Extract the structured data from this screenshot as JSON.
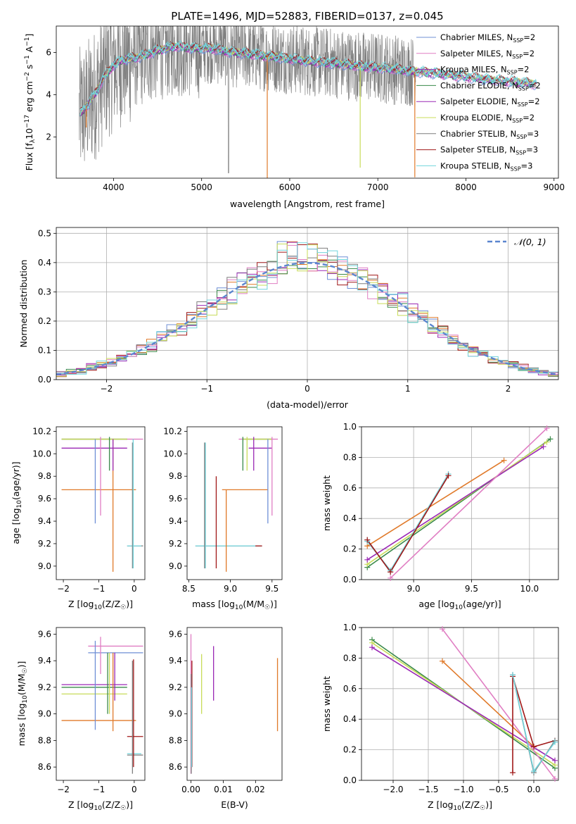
{
  "figure": {
    "title": "PLATE=1496, MJD=52883, FIBERID=0137, z=0.045"
  },
  "colors": {
    "blue": "#6f8fd6",
    "orange": "#e07a2a",
    "green": "#3a8a4a",
    "red": "#a01818",
    "purple": "#9a28b5",
    "brown": "#8b5a2b",
    "pink": "#e07ec3",
    "gray": "#7f7f7f",
    "olive": "#c8dc5a",
    "cyan": "#72d4dc",
    "dashed": "#5b86cf"
  },
  "chart_data": [
    {
      "type": "line",
      "title": "PLATE=1496, MJD=52883, FIBERID=0137, z=0.045",
      "xlabel": "wavelength [Angstrom, rest frame]",
      "ylabel": "Flux [f",
      "ylabel_full": "Flux [fλ10⁻¹⁷ erg cm⁻² s⁻¹ A⁻¹]",
      "xlim": [
        3350,
        9050
      ],
      "ylim": [
        0.05,
        7.25
      ],
      "xticks": [
        4000,
        5000,
        6000,
        7000,
        8000,
        9000
      ],
      "yticks": [
        2,
        4,
        6
      ],
      "legend_position": "top-right",
      "series": [
        {
          "name": "Chabrier MILES, NSSP=2",
          "label_main": "Chabrier MILES, N",
          "label_sub": "SSP",
          "label_end": "=2",
          "color": "blue"
        },
        {
          "name": "Salpeter MILES, NSSP=2",
          "label_main": "Salpeter MILES, N",
          "label_sub": "SSP",
          "label_end": "=2",
          "color": "pink"
        },
        {
          "name": "Kroupa MILES, NSSP=2",
          "label_main": "Kroupa MILES, N",
          "label_sub": "SSP",
          "label_end": "=2",
          "color": "purple"
        },
        {
          "name": "Chabrier ELODIE, NSSP=2",
          "label_main": "Chabrier ELODIE, N",
          "label_sub": "SSP",
          "label_end": "=2",
          "color": "green"
        },
        {
          "name": "Salpeter ELODIE, NSSP=2",
          "label_main": "Salpeter ELODIE, N",
          "label_sub": "SSP",
          "label_end": "=2",
          "color": "purple"
        },
        {
          "name": "Kroupa ELODIE, NSSP=2",
          "label_main": "Kroupa ELODIE, N",
          "label_sub": "SSP",
          "label_end": "=2",
          "color": "olive"
        },
        {
          "name": "Chabrier STELIB, NSSP=3",
          "label_main": "Chabrier STELIB, N",
          "label_sub": "SSP",
          "label_end": "=3",
          "color": "gray"
        },
        {
          "name": "Salpeter STELIB, NSSP=3",
          "label_main": "Salpeter STELIB, N",
          "label_sub": "SSP",
          "label_end": "=3",
          "color": "red"
        },
        {
          "name": "Kroupa STELIB, NSSP=3",
          "label_main": "Kroupa STELIB, N",
          "label_sub": "SSP",
          "label_end": "=3",
          "color": "cyan"
        }
      ],
      "continuum_nodes": [
        [
          3620,
          3.1
        ],
        [
          3700,
          3.5
        ],
        [
          3800,
          4.1
        ],
        [
          3900,
          4.9
        ],
        [
          4000,
          5.4
        ],
        [
          4100,
          5.65
        ],
        [
          4300,
          5.8
        ],
        [
          4500,
          6.1
        ],
        [
          4700,
          6.3
        ],
        [
          4900,
          6.2
        ],
        [
          5100,
          6.2
        ],
        [
          5300,
          6.05
        ],
        [
          5600,
          5.9
        ],
        [
          5900,
          5.75
        ],
        [
          6200,
          5.6
        ],
        [
          6500,
          5.5
        ],
        [
          6800,
          5.35
        ],
        [
          7100,
          5.25
        ],
        [
          7400,
          5.1
        ],
        [
          7700,
          5.0
        ],
        [
          8000,
          4.85
        ],
        [
          8300,
          4.7
        ],
        [
          8600,
          4.6
        ],
        [
          8800,
          4.5
        ]
      ],
      "data_range": [
        3610,
        7430
      ],
      "model_range": [
        3620,
        8800
      ],
      "dips": [
        {
          "x": 5745,
          "depth": 5.8,
          "color": "orange"
        },
        {
          "x": 6800,
          "depth": 4.8,
          "color": "olive"
        },
        {
          "x": 7420,
          "depth": 5.0,
          "color": "orange"
        },
        {
          "x": 3690,
          "depth": 1.0,
          "color": "orange"
        }
      ]
    },
    {
      "type": "area",
      "xlabel": "(data-model)/error",
      "ylabel": "Normed distribution",
      "xlim": [
        -2.5,
        2.5
      ],
      "ylim": [
        0,
        0.52
      ],
      "xticks": [
        -2,
        -1,
        0,
        1,
        2
      ],
      "yticks": [
        0.0,
        0.1,
        0.2,
        0.3,
        0.4,
        0.5
      ],
      "grid": true,
      "legend_position": "top-right",
      "reference_label": "𝒩(0, 1)",
      "bin_width": 0.1,
      "bin_start": -2.5,
      "hist_series": [
        "blue",
        "orange",
        "green",
        "red",
        "purple",
        "pink",
        "gray",
        "olive",
        "cyan"
      ]
    },
    {
      "type": "scatter",
      "xlabel": "Z [log10(Z/Z☉)]",
      "xlabel_parts": [
        "Z [log",
        "10",
        "(Z/Z",
        "☉",
        ")]"
      ],
      "ylabel": "age  [log10(age/yr)]",
      "ylabel_parts": [
        "age  [log",
        "10",
        "(age/yr)]"
      ],
      "xlim": [
        -2.2,
        0.3
      ],
      "ylim": [
        8.88,
        10.24
      ],
      "xticks": [
        -2,
        -1,
        0
      ],
      "yticks": [
        9.0,
        9.2,
        9.4,
        9.6,
        9.8,
        10.0,
        10.2
      ],
      "hlines": [
        {
          "y": 10.13,
          "x0": -2.05,
          "x1": 0.25,
          "color": "pink"
        },
        {
          "y": 10.13,
          "x0": -2.05,
          "x1": -0.2,
          "color": "green"
        },
        {
          "y": 10.13,
          "x0": -2.05,
          "x1": -0.2,
          "color": "olive"
        },
        {
          "y": 10.05,
          "x0": -2.05,
          "x1": -0.2,
          "color": "purple"
        },
        {
          "y": 9.68,
          "x0": -2.05,
          "x1": 0.05,
          "color": "orange"
        },
        {
          "y": 9.18,
          "x0": -0.2,
          "x1": 0.25,
          "color": "gray"
        },
        {
          "y": 9.18,
          "x0": -0.2,
          "x1": 0.2,
          "color": "cyan"
        }
      ],
      "vlines": [
        {
          "x": -1.1,
          "y0": 9.38,
          "y1": 10.13,
          "color": "blue"
        },
        {
          "x": -0.95,
          "y0": 9.45,
          "y1": 10.15,
          "color": "pink"
        },
        {
          "x": -0.7,
          "y0": 9.85,
          "y1": 10.15,
          "color": "green"
        },
        {
          "x": -0.6,
          "y0": 8.95,
          "y1": 10.13,
          "color": "orange"
        },
        {
          "x": -0.6,
          "y0": 9.85,
          "y1": 10.13,
          "color": "purple"
        },
        {
          "x": -0.05,
          "y0": 8.98,
          "y1": 10.1,
          "color": "gray"
        },
        {
          "x": -0.03,
          "y0": 8.98,
          "y1": 10.13,
          "color": "cyan"
        }
      ]
    },
    {
      "type": "scatter",
      "xlabel": "mass [log10(M/M☉)]",
      "xlabel_parts": [
        "mass [log",
        "10",
        "(M/M",
        "☉",
        ")]"
      ],
      "xlim": [
        8.48,
        9.62
      ],
      "ylim": [
        8.88,
        10.24
      ],
      "xticks": [
        8.5,
        9.0,
        9.5
      ],
      "yticks": [
        9.0,
        9.2,
        9.4,
        9.6,
        9.8,
        10.0,
        10.2
      ],
      "hlines": [
        {
          "y": 10.13,
          "x0": 9.1,
          "x1": 9.57,
          "color": "pink"
        },
        {
          "y": 10.13,
          "x0": 9.15,
          "x1": 9.5,
          "color": "green"
        },
        {
          "y": 10.13,
          "x0": 9.15,
          "x1": 9.5,
          "color": "olive"
        },
        {
          "y": 10.05,
          "x0": 9.22,
          "x1": 9.5,
          "color": "purple"
        },
        {
          "y": 9.68,
          "x0": 8.9,
          "x1": 9.45,
          "color": "orange"
        },
        {
          "y": 9.18,
          "x0": 8.58,
          "x1": 9.38,
          "color": "gray"
        },
        {
          "y": 9.18,
          "x0": 8.58,
          "x1": 9.32,
          "color": "cyan"
        },
        {
          "y": 9.18,
          "x0": 9.3,
          "x1": 9.38,
          "color": "red"
        }
      ],
      "vlines": [
        {
          "x": 8.7,
          "y0": 8.98,
          "y1": 10.1,
          "color": "cyan"
        },
        {
          "x": 8.69,
          "y0": 8.98,
          "y1": 10.1,
          "color": "gray"
        },
        {
          "x": 8.83,
          "y0": 8.98,
          "y1": 9.8,
          "color": "red"
        },
        {
          "x": 8.95,
          "y0": 8.95,
          "y1": 9.68,
          "color": "orange"
        },
        {
          "x": 9.15,
          "y0": 9.85,
          "y1": 10.15,
          "color": "green"
        },
        {
          "x": 9.2,
          "y0": 9.85,
          "y1": 10.15,
          "color": "olive"
        },
        {
          "x": 9.28,
          "y0": 9.85,
          "y1": 10.15,
          "color": "purple"
        },
        {
          "x": 9.45,
          "y0": 9.38,
          "y1": 10.13,
          "color": "blue"
        },
        {
          "x": 9.5,
          "y0": 9.45,
          "y1": 10.15,
          "color": "pink"
        }
      ]
    },
    {
      "type": "line",
      "xlabel": "age  [log10(age/yr)]",
      "xlabel_parts": [
        "age  [log",
        "10",
        "(age/yr)]"
      ],
      "ylabel": "mass weight",
      "xlim": [
        8.55,
        10.25
      ],
      "ylim": [
        0,
        1
      ],
      "xticks": [
        9.0,
        9.5,
        10.0
      ],
      "yticks": [
        0.0,
        0.2,
        0.4,
        0.6,
        0.8,
        1.0
      ],
      "grid": true,
      "series": [
        {
          "color": "orange",
          "points": [
            [
              8.6,
              0.22
            ],
            [
              9.78,
              0.78
            ]
          ]
        },
        {
          "color": "green",
          "points": [
            [
              8.6,
              0.08
            ],
            [
              10.18,
              0.92
            ]
          ]
        },
        {
          "color": "olive",
          "points": [
            [
              8.6,
              0.1
            ],
            [
              10.15,
              0.9
            ]
          ]
        },
        {
          "color": "purple",
          "points": [
            [
              8.6,
              0.13
            ],
            [
              10.12,
              0.87
            ]
          ]
        },
        {
          "color": "pink",
          "points": [
            [
              8.8,
              0.01
            ],
            [
              10.15,
              0.99
            ]
          ]
        },
        {
          "color": "gray",
          "points": [
            [
              8.6,
              0.26
            ],
            [
              8.8,
              0.05
            ],
            [
              9.3,
              0.69
            ]
          ]
        },
        {
          "color": "cyan",
          "points": [
            [
              8.6,
              0.25
            ],
            [
              8.8,
              0.06
            ],
            [
              9.3,
              0.69
            ]
          ]
        },
        {
          "color": "red",
          "points": [
            [
              8.6,
              0.26
            ],
            [
              8.8,
              0.05
            ],
            [
              9.3,
              0.68
            ]
          ]
        }
      ]
    },
    {
      "type": "scatter",
      "xlabel": "Z [log10(Z/Z☉)]",
      "xlabel_parts": [
        "Z [log",
        "10",
        "(Z/Z",
        "☉",
        ")]"
      ],
      "ylabel": "mass [log10(M/M☉)]",
      "ylabel_parts": [
        "mass [log",
        "10",
        "(M/M",
        "☉",
        ")]"
      ],
      "xlim": [
        -2.2,
        0.3
      ],
      "ylim": [
        8.5,
        9.65
      ],
      "xticks": [
        -2,
        -1,
        0
      ],
      "yticks": [
        8.6,
        8.8,
        9.0,
        9.2,
        9.4,
        9.6
      ],
      "hlines": [
        {
          "y": 9.51,
          "x0": -1.3,
          "x1": 0.25,
          "color": "pink"
        },
        {
          "y": 9.46,
          "x0": -1.3,
          "x1": 0.25,
          "color": "blue"
        },
        {
          "y": 9.22,
          "x0": -2.05,
          "x1": -0.2,
          "color": "purple"
        },
        {
          "y": 9.2,
          "x0": -2.05,
          "x1": -0.2,
          "color": "green"
        },
        {
          "y": 9.15,
          "x0": -2.05,
          "x1": -0.2,
          "color": "olive"
        },
        {
          "y": 8.95,
          "x0": -2.05,
          "x1": 0.05,
          "color": "orange"
        },
        {
          "y": 8.83,
          "x0": -0.2,
          "x1": 0.25,
          "color": "red"
        },
        {
          "y": 8.7,
          "x0": -0.2,
          "x1": 0.2,
          "color": "cyan"
        },
        {
          "y": 8.69,
          "x0": -0.2,
          "x1": 0.25,
          "color": "gray"
        }
      ],
      "vlines": [
        {
          "x": -1.1,
          "y0": 8.88,
          "y1": 9.55,
          "color": "blue"
        },
        {
          "x": -0.95,
          "y0": 9.3,
          "y1": 9.58,
          "color": "pink"
        },
        {
          "x": -0.75,
          "y0": 9.0,
          "y1": 9.46,
          "color": "green"
        },
        {
          "x": -0.7,
          "y0": 9.0,
          "y1": 9.46,
          "color": "olive"
        },
        {
          "x": -0.6,
          "y0": 8.87,
          "y1": 9.46,
          "color": "orange"
        },
        {
          "x": -0.55,
          "y0": 9.1,
          "y1": 9.46,
          "color": "purple"
        },
        {
          "x": -0.05,
          "y0": 8.55,
          "y1": 9.4,
          "color": "gray"
        },
        {
          "x": -0.02,
          "y0": 8.6,
          "y1": 9.41,
          "color": "red"
        }
      ]
    },
    {
      "type": "scatter",
      "xlabel": "E(B-V)",
      "xlim": [
        -0.0012,
        0.0282
      ],
      "ylim": [
        8.5,
        9.65
      ],
      "xticks": [
        0.0,
        0.01,
        0.02
      ],
      "xtick_labels": [
        "0.00",
        "0.01",
        "0.02"
      ],
      "yticks": [
        8.6,
        8.8,
        9.0,
        9.2,
        9.4,
        9.6
      ],
      "vlines": [
        {
          "x": 0.0,
          "y0": 8.55,
          "y1": 9.6,
          "color": "pink"
        },
        {
          "x": 0.0003,
          "y0": 8.6,
          "y1": 9.4,
          "color": "red"
        },
        {
          "x": 0.0001,
          "y0": 8.55,
          "y1": 9.3,
          "color": "gray"
        },
        {
          "x": 0.0002,
          "y0": 8.6,
          "y1": 9.2,
          "color": "cyan"
        },
        {
          "x": 0.0033,
          "y0": 9.0,
          "y1": 9.45,
          "color": "olive"
        },
        {
          "x": 0.007,
          "y0": 9.1,
          "y1": 9.51,
          "color": "purple"
        },
        {
          "x": 0.0268,
          "y0": 8.87,
          "y1": 9.42,
          "color": "orange"
        }
      ]
    },
    {
      "type": "line",
      "xlabel": "Z [log10(Z/Z☉)]",
      "xlabel_parts": [
        "Z [log",
        "10",
        "(Z/Z",
        "☉",
        ")]"
      ],
      "ylabel": "mass weight",
      "xlim": [
        -2.45,
        0.35
      ],
      "ylim": [
        0,
        1
      ],
      "xticks": [
        -2.0,
        -1.5,
        -1.0,
        -0.5,
        0.0
      ],
      "xtick_labels": [
        "−2.0",
        "−1.5",
        "−1.0",
        "−0.5",
        "0.0"
      ],
      "yticks": [
        0.0,
        0.2,
        0.4,
        0.6,
        0.8,
        1.0
      ],
      "grid": true,
      "series": [
        {
          "color": "orange",
          "points": [
            [
              -1.3,
              0.78
            ],
            [
              0.0,
              0.22
            ]
          ]
        },
        {
          "color": "green",
          "points": [
            [
              -2.3,
              0.92
            ],
            [
              0.3,
              0.08
            ]
          ]
        },
        {
          "color": "olive",
          "points": [
            [
              -2.3,
              0.9
            ],
            [
              0.3,
              0.1
            ]
          ]
        },
        {
          "color": "purple",
          "points": [
            [
              -2.3,
              0.87
            ],
            [
              0.3,
              0.13
            ]
          ]
        },
        {
          "color": "pink",
          "points": [
            [
              -1.3,
              0.99
            ],
            [
              0.3,
              0.01
            ]
          ]
        },
        {
          "color": "red",
          "points": [
            [
              -0.3,
              0.05
            ],
            [
              -0.3,
              0.68
            ],
            [
              0.0,
              0.22
            ],
            [
              0.3,
              0.26
            ]
          ]
        },
        {
          "color": "gray",
          "points": [
            [
              -0.3,
              0.69
            ],
            [
              0.0,
              0.05
            ],
            [
              0.3,
              0.26
            ]
          ]
        },
        {
          "color": "cyan",
          "points": [
            [
              -0.3,
              0.69
            ],
            [
              0.0,
              0.06
            ],
            [
              0.3,
              0.25
            ]
          ]
        }
      ]
    }
  ]
}
